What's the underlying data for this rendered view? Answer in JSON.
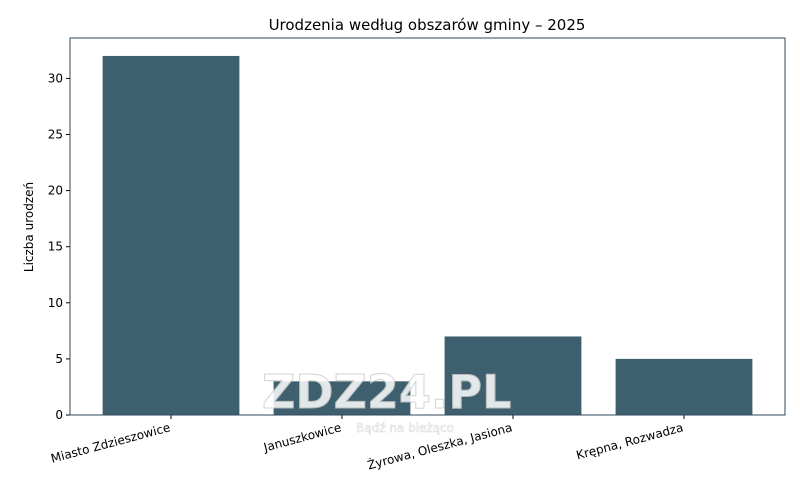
{
  "chart_data": {
    "type": "bar",
    "title": "Urodzenia według obszarów gminy – 2025",
    "ylabel": "Liczba urodzeń",
    "categories": [
      "Miasto Zdzieszowice",
      "Januszkowice",
      "Żyrowa, Oleszka, Jasiona",
      "Krępna, Rozwadza"
    ],
    "values": [
      32,
      3,
      7,
      5
    ],
    "color": "#3e5f6e",
    "ylim": [
      0,
      33.6
    ],
    "yticks": [
      0,
      5,
      10,
      15,
      20,
      25,
      30
    ],
    "grid": false
  },
  "watermark": {
    "logo": "ZDZ24.PL",
    "tagline": "Bądź na bieżąco"
  }
}
